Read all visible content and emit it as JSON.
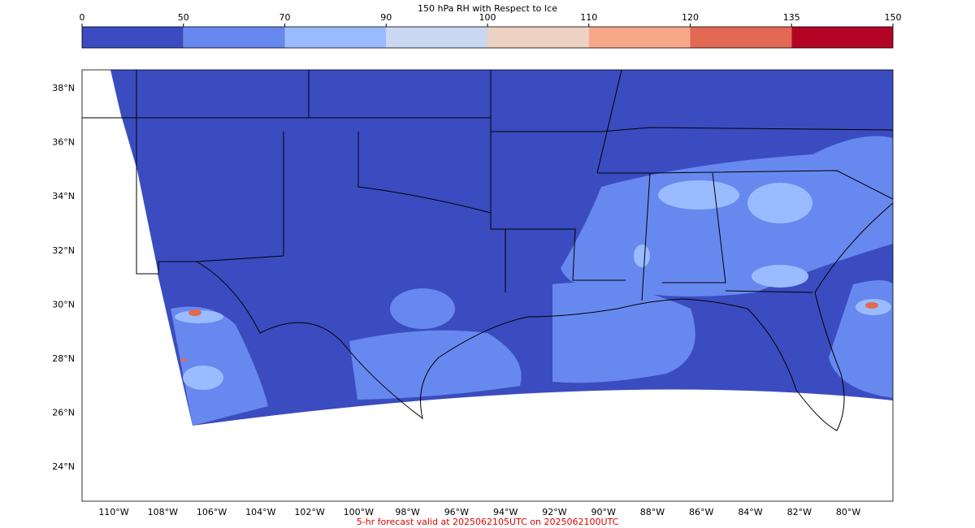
{
  "colorbar": {
    "title": "150 hPa RH with Respect to Ice",
    "ticks": [
      0,
      50,
      70,
      90,
      100,
      110,
      120,
      135,
      150
    ],
    "colors": [
      "#3b4cc0",
      "#6788ee",
      "#9abbff",
      "#c9d7f0",
      "#edd1c2",
      "#f7a889",
      "#e26952",
      "#b40426"
    ]
  },
  "map": {
    "lat_labels": [
      "38°N",
      "36°N",
      "34°N",
      "32°N",
      "30°N",
      "28°N",
      "26°N",
      "24°N"
    ],
    "lon_labels": [
      "110°W",
      "108°W",
      "106°W",
      "104°W",
      "102°W",
      "100°W",
      "98°W",
      "96°W",
      "94°W",
      "92°W",
      "90°W",
      "88°W",
      "86°W",
      "84°W",
      "82°W",
      "80°W"
    ]
  },
  "footer": "5-hr forecast valid at 2025062105UTC on 2025062100UTC"
}
